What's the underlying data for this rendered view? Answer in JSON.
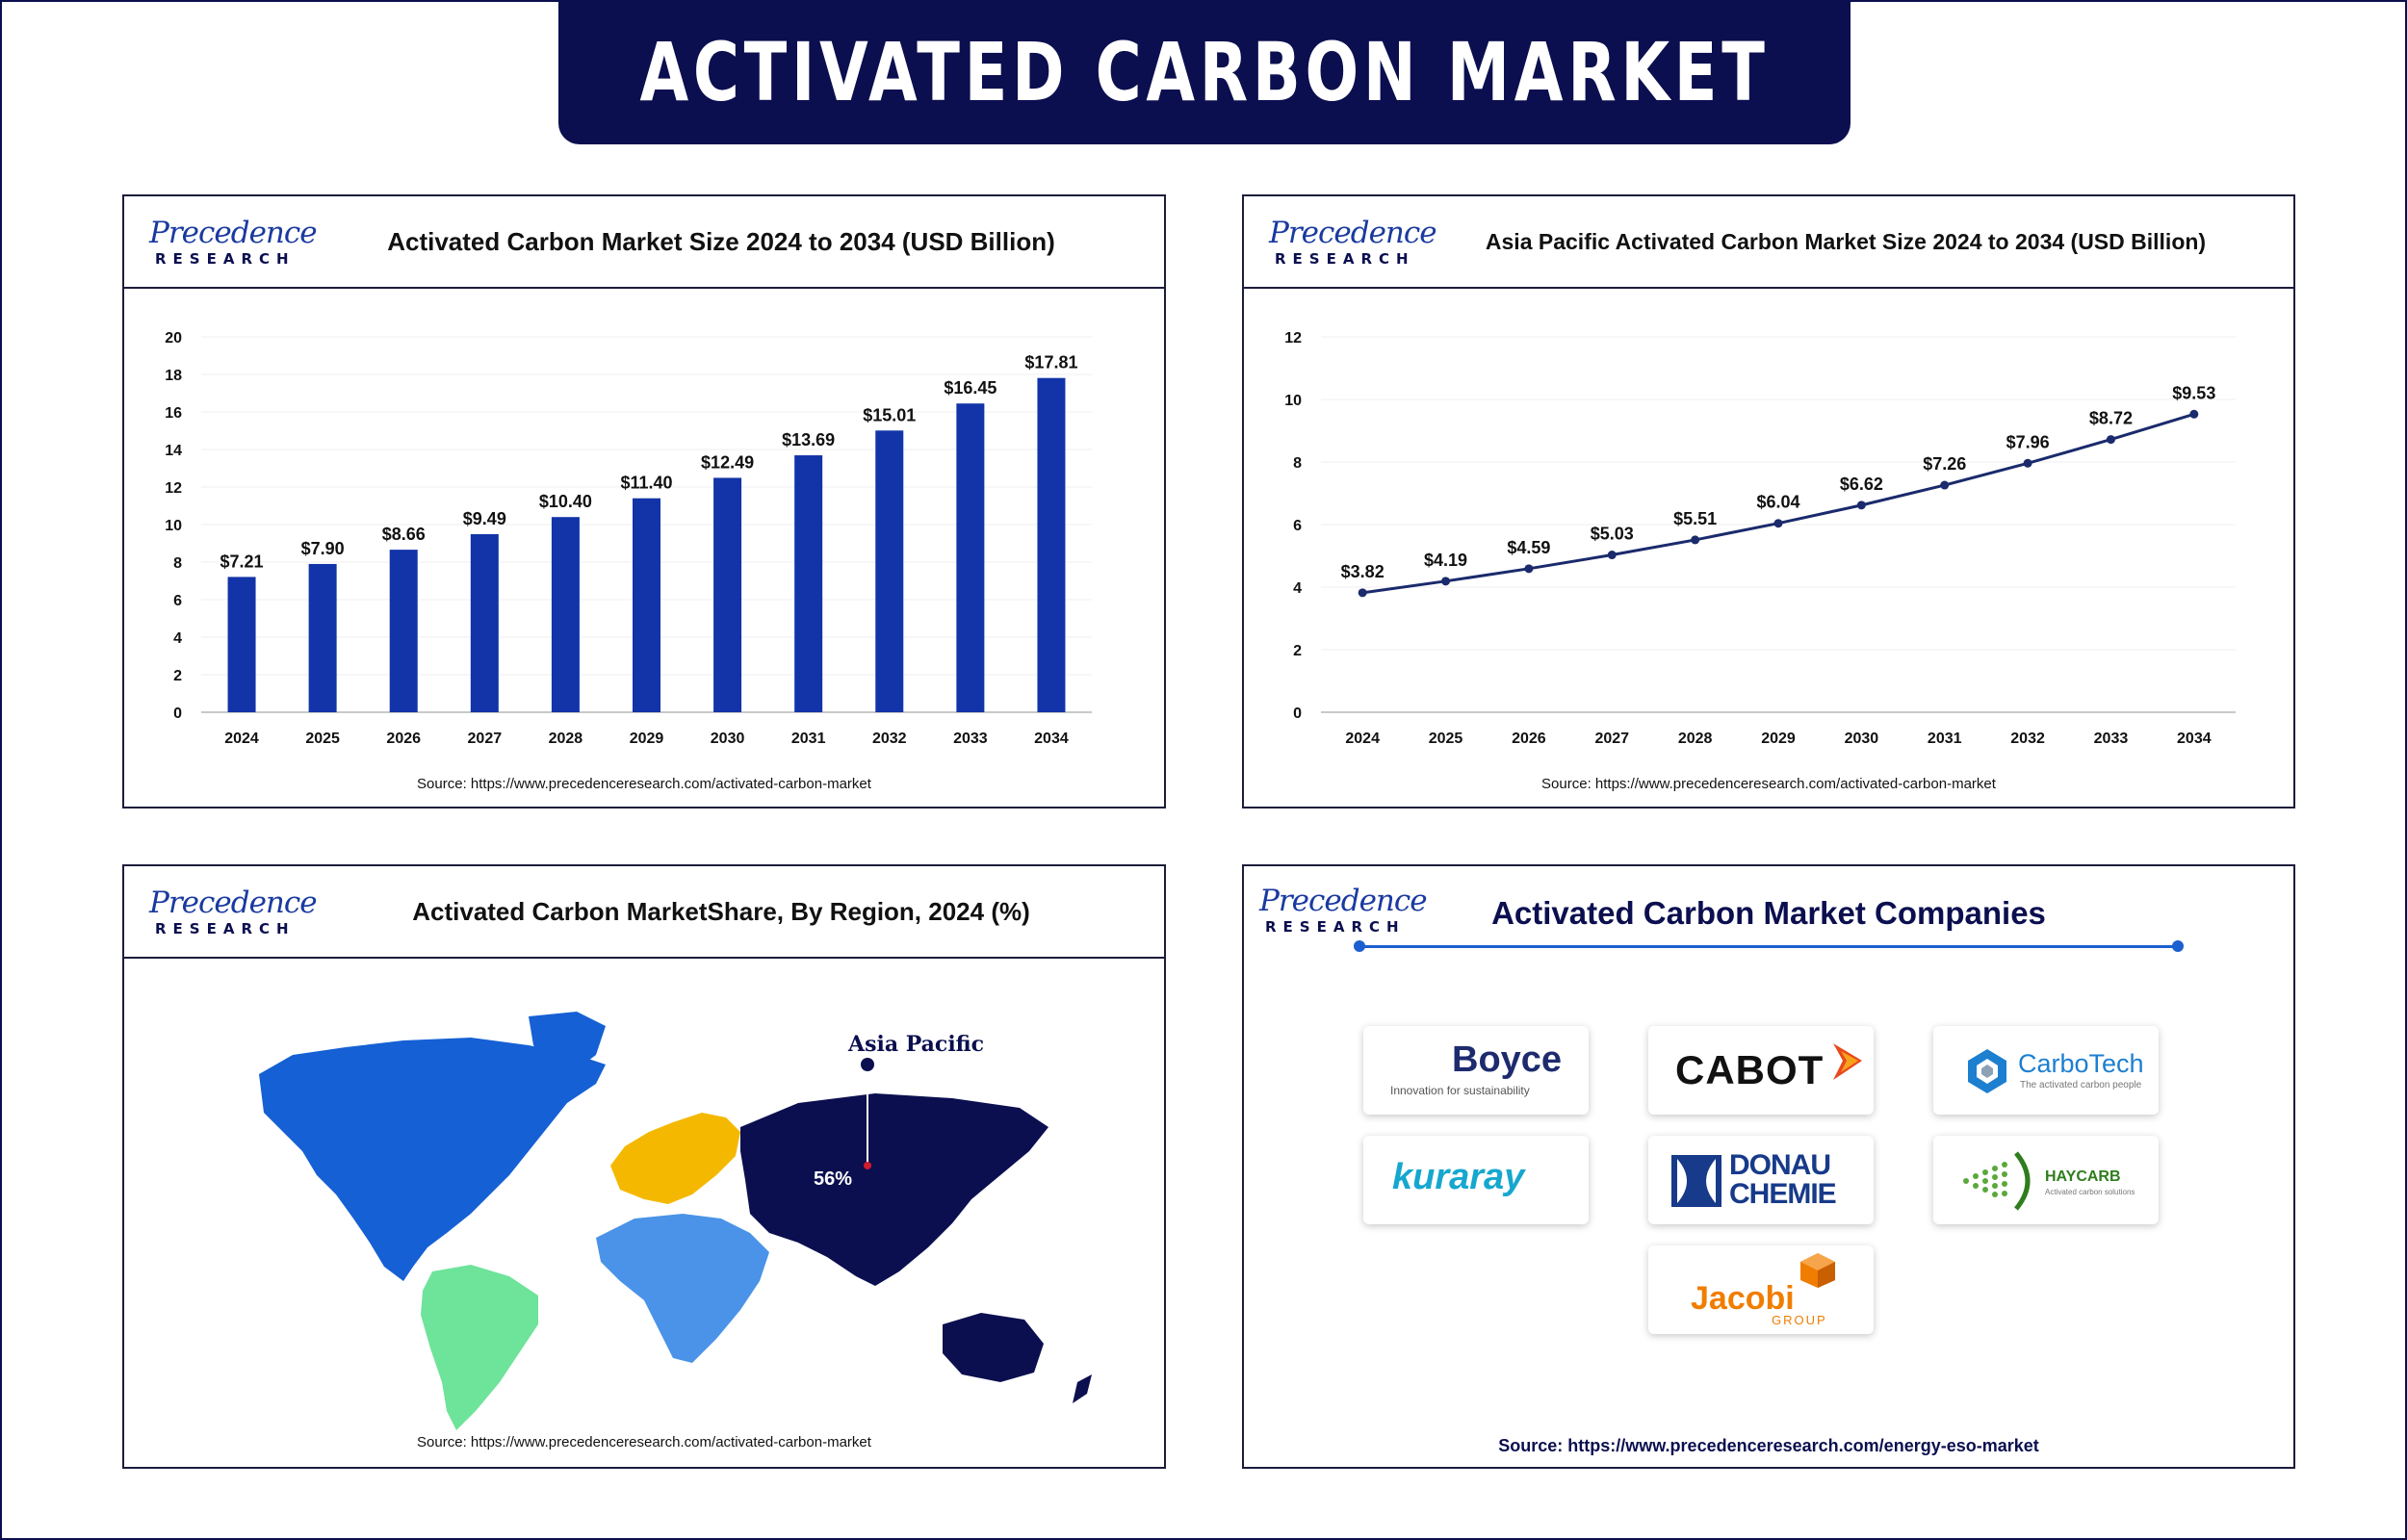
{
  "page_title": "ACTIVATED CARBON MARKET",
  "logo": {
    "line1": "Precedence",
    "line2": "RESEARCH"
  },
  "colors": {
    "navy": "#0b0f4f",
    "bar": "#1234a8",
    "line": "#1a2a6c",
    "accent": "#1b5fd0"
  },
  "chart_data": [
    {
      "type": "bar",
      "title": "Activated Carbon Market Size 2024 to 2034 (USD Billion)",
      "categories": [
        "2024",
        "2025",
        "2026",
        "2027",
        "2028",
        "2029",
        "2030",
        "2031",
        "2032",
        "2033",
        "2034"
      ],
      "values": [
        7.21,
        7.9,
        8.66,
        9.49,
        10.4,
        11.4,
        12.49,
        13.69,
        15.01,
        16.45,
        17.81
      ],
      "labels": [
        "$7.21",
        "$7.90",
        "$8.66",
        "$9.49",
        "$10.40",
        "$11.40",
        "$12.49",
        "$13.69",
        "$15.01",
        "$16.45",
        "$17.81"
      ],
      "ylim": [
        0,
        20
      ],
      "yticks": [
        "0",
        "2",
        "4",
        "6",
        "8",
        "10",
        "12",
        "14",
        "16",
        "18",
        "20"
      ],
      "xlabel": "",
      "ylabel": "",
      "source": "Source: https://www.precedenceresearch.com/activated-carbon-market"
    },
    {
      "type": "line",
      "title": "Asia Pacific Activated Carbon Market Size 2024 to 2034 (USD Billion)",
      "categories": [
        "2024",
        "2025",
        "2026",
        "2027",
        "2028",
        "2029",
        "2030",
        "2031",
        "2032",
        "2033",
        "2034"
      ],
      "values": [
        3.82,
        4.19,
        4.59,
        5.03,
        5.51,
        6.04,
        6.62,
        7.26,
        7.96,
        8.72,
        9.53
      ],
      "labels": [
        "$3.82",
        "$4.19",
        "$4.59",
        "$5.03",
        "$5.51",
        "$6.04",
        "$6.62",
        "$7.26",
        "$7.96",
        "$8.72",
        "$9.53"
      ],
      "ylim": [
        0,
        12
      ],
      "yticks": [
        "0",
        "2",
        "4",
        "6",
        "8",
        "10",
        "12"
      ],
      "xlabel": "",
      "ylabel": "",
      "source": "Source: https://www.precedenceresearch.com/activated-carbon-market"
    }
  ],
  "map_panel": {
    "title": "Activated Carbon MarketShare, By Region, 2024 (%)",
    "highlight_region": "Asia Pacific",
    "highlight_value": "56%",
    "region_colors": {
      "north_america": "#1560d4",
      "latin_america": "#6ee39a",
      "europe": "#f5b800",
      "middle_east_africa": "#4a93e8",
      "asia_pacific": "#0b0f4f"
    },
    "source": "Source: https://www.precedenceresearch.com/activated-carbon-market"
  },
  "companies_panel": {
    "title": "Activated Carbon Market Companies",
    "companies": [
      {
        "name": "Boyce",
        "tagline": "Innovation for sustainability"
      },
      {
        "name": "CABOT"
      },
      {
        "name": "CarboTech",
        "tagline": "The activated carbon people"
      },
      {
        "name": "kuraray"
      },
      {
        "name": "DONAU",
        "name2": "CHEMIE"
      },
      {
        "name": "HAYCARB",
        "tagline": "Activated carbon solutions"
      },
      {
        "name": "Jacobi",
        "tagline": "GROUP"
      }
    ],
    "source": "Source: https://www.precedenceresearch.com/energy-eso-market"
  }
}
